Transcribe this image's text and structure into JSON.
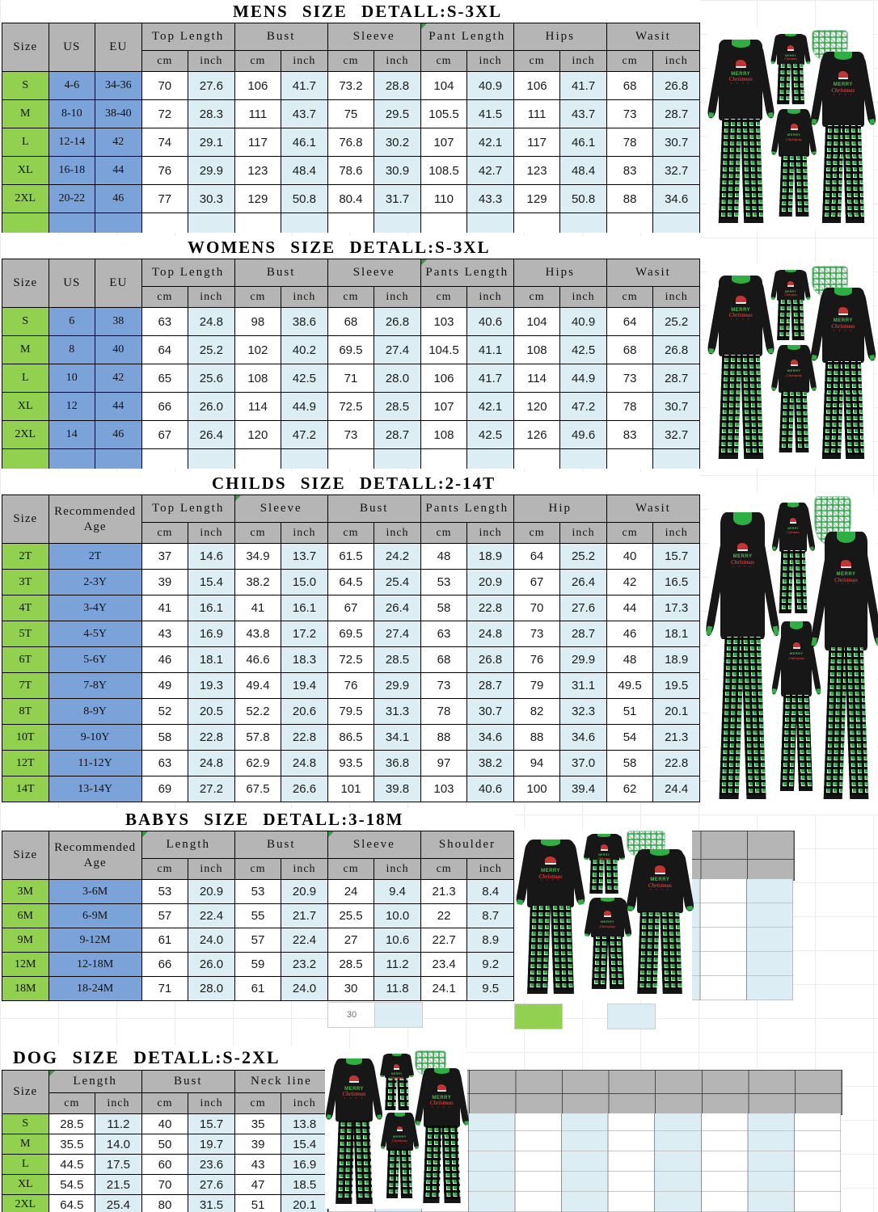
{
  "colors": {
    "header_gray": "#b5b5b5",
    "size_column_green": "#92d050",
    "id_column_blue": "#7ba3d9",
    "inch_column_blue": "#dcedf3",
    "table_border": "#000000",
    "plaid_green": "#2f9e44",
    "top_black": "#171717"
  },
  "misc": {
    "stray_cell_text": "30"
  },
  "photo": {
    "shirt_text_top": "MERRY",
    "shirt_text_script": "Christmas",
    "shirt_dots": "* * * *"
  },
  "sections": [
    {
      "id": "mens",
      "title": "MENS SIZE DETALL:S-3XL",
      "id_cols": [
        "Size",
        "US",
        "EU"
      ],
      "groups": [
        "Top Length",
        "Bust",
        "Sleeve",
        "Pant Length",
        "Hips",
        "Wasit"
      ],
      "sub_cols": [
        "cm",
        "inch"
      ],
      "note_marker_groups": [
        3
      ],
      "trailing_empty_row": true,
      "rows": [
        {
          "id": [
            "S",
            "4-6",
            "34-36"
          ],
          "vals": [
            "70",
            "27.6",
            "106",
            "41.7",
            "73.2",
            "28.8",
            "104",
            "40.9",
            "106",
            "41.7",
            "68",
            "26.8"
          ]
        },
        {
          "id": [
            "M",
            "8-10",
            "38-40"
          ],
          "vals": [
            "72",
            "28.3",
            "111",
            "43.7",
            "75",
            "29.5",
            "105.5",
            "41.5",
            "111",
            "43.7",
            "73",
            "28.7"
          ]
        },
        {
          "id": [
            "L",
            "12-14",
            "42"
          ],
          "vals": [
            "74",
            "29.1",
            "117",
            "46.1",
            "76.8",
            "30.2",
            "107",
            "42.1",
            "117",
            "46.1",
            "78",
            "30.7"
          ]
        },
        {
          "id": [
            "XL",
            "16-18",
            "44"
          ],
          "vals": [
            "76",
            "29.9",
            "123",
            "48.4",
            "78.6",
            "30.9",
            "108.5",
            "42.7",
            "123",
            "48.4",
            "83",
            "32.7"
          ]
        },
        {
          "id": [
            "2XL",
            "20-22",
            "46"
          ],
          "vals": [
            "77",
            "30.3",
            "129",
            "50.8",
            "80.4",
            "31.7",
            "110",
            "43.3",
            "129",
            "50.8",
            "88",
            "34.6"
          ]
        }
      ]
    },
    {
      "id": "womens",
      "title": "WOMENS SIZE DETALL:S-3XL",
      "id_cols": [
        "Size",
        "US",
        "EU"
      ],
      "groups": [
        "Top Length",
        "Bust",
        "Sleeve",
        "Pants Length",
        "Hips",
        "Wasit"
      ],
      "sub_cols": [
        "cm",
        "inch"
      ],
      "note_marker_groups": [
        3
      ],
      "trailing_empty_row": true,
      "rows": [
        {
          "id": [
            "S",
            "6",
            "38"
          ],
          "vals": [
            "63",
            "24.8",
            "98",
            "38.6",
            "68",
            "26.8",
            "103",
            "40.6",
            "104",
            "40.9",
            "64",
            "25.2"
          ]
        },
        {
          "id": [
            "M",
            "8",
            "40"
          ],
          "vals": [
            "64",
            "25.2",
            "102",
            "40.2",
            "69.5",
            "27.4",
            "104.5",
            "41.1",
            "108",
            "42.5",
            "68",
            "26.8"
          ]
        },
        {
          "id": [
            "L",
            "10",
            "42"
          ],
          "vals": [
            "65",
            "25.6",
            "108",
            "42.5",
            "71",
            "28.0",
            "106",
            "41.7",
            "114",
            "44.9",
            "73",
            "28.7"
          ]
        },
        {
          "id": [
            "XL",
            "12",
            "44"
          ],
          "vals": [
            "66",
            "26.0",
            "114",
            "44.9",
            "72.5",
            "28.5",
            "107",
            "42.1",
            "120",
            "47.2",
            "78",
            "30.7"
          ]
        },
        {
          "id": [
            "2XL",
            "14",
            "46"
          ],
          "vals": [
            "67",
            "26.4",
            "120",
            "47.2",
            "73",
            "28.7",
            "108",
            "42.5",
            "126",
            "49.6",
            "83",
            "32.7"
          ]
        }
      ]
    },
    {
      "id": "childs",
      "title": "CHILDS SIZE DETALL:2-14T",
      "id_cols": [
        "Size",
        "Recommended Age"
      ],
      "groups": [
        "Top Length",
        "Sleeve",
        "Bust",
        "Pants Length",
        "Hip",
        "Wasit"
      ],
      "sub_cols": [
        "cm",
        "inch"
      ],
      "note_marker_groups": [
        1
      ],
      "trailing_empty_row": false,
      "rows": [
        {
          "id": [
            "2T",
            "2T"
          ],
          "vals": [
            "37",
            "14.6",
            "34.9",
            "13.7",
            "61.5",
            "24.2",
            "48",
            "18.9",
            "64",
            "25.2",
            "40",
            "15.7"
          ]
        },
        {
          "id": [
            "3T",
            "2-3Y"
          ],
          "vals": [
            "39",
            "15.4",
            "38.2",
            "15.0",
            "64.5",
            "25.4",
            "53",
            "20.9",
            "67",
            "26.4",
            "42",
            "16.5"
          ]
        },
        {
          "id": [
            "4T",
            "3-4Y"
          ],
          "vals": [
            "41",
            "16.1",
            "41",
            "16.1",
            "67",
            "26.4",
            "58",
            "22.8",
            "70",
            "27.6",
            "44",
            "17.3"
          ]
        },
        {
          "id": [
            "5T",
            "4-5Y"
          ],
          "vals": [
            "43",
            "16.9",
            "43.8",
            "17.2",
            "69.5",
            "27.4",
            "63",
            "24.8",
            "73",
            "28.7",
            "46",
            "18.1"
          ]
        },
        {
          "id": [
            "6T",
            "5-6Y"
          ],
          "vals": [
            "46",
            "18.1",
            "46.6",
            "18.3",
            "72.5",
            "28.5",
            "68",
            "26.8",
            "76",
            "29.9",
            "48",
            "18.9"
          ]
        },
        {
          "id": [
            "7T",
            "7-8Y"
          ],
          "vals": [
            "49",
            "19.3",
            "49.4",
            "19.4",
            "76",
            "29.9",
            "73",
            "28.7",
            "79",
            "31.1",
            "49.5",
            "19.5"
          ]
        },
        {
          "id": [
            "8T",
            "8-9Y"
          ],
          "vals": [
            "52",
            "20.5",
            "52.2",
            "20.6",
            "79.5",
            "31.3",
            "78",
            "30.7",
            "82",
            "32.3",
            "51",
            "20.1"
          ]
        },
        {
          "id": [
            "10T",
            "9-10Y"
          ],
          "vals": [
            "58",
            "22.8",
            "57.8",
            "22.8",
            "86.5",
            "34.1",
            "88",
            "34.6",
            "88",
            "34.6",
            "54",
            "21.3"
          ]
        },
        {
          "id": [
            "12T",
            "11-12Y"
          ],
          "vals": [
            "63",
            "24.8",
            "62.9",
            "24.8",
            "93.5",
            "36.8",
            "97",
            "38.2",
            "94",
            "37.0",
            "58",
            "22.8"
          ]
        },
        {
          "id": [
            "14T",
            "13-14Y"
          ],
          "vals": [
            "69",
            "27.2",
            "67.5",
            "26.6",
            "101",
            "39.8",
            "103",
            "40.6",
            "100",
            "39.4",
            "62",
            "24.4"
          ]
        }
      ]
    },
    {
      "id": "babys",
      "title": "BABYS SIZE DETALL:3-18M",
      "id_cols": [
        "Size",
        "Recommended Age"
      ],
      "groups": [
        "Length",
        "Bust",
        "Sleeve",
        "Shoulder"
      ],
      "sub_cols": [
        "cm",
        "inch"
      ],
      "note_marker_groups": [
        0,
        2
      ],
      "trailing_empty_row": false,
      "rows": [
        {
          "id": [
            "3M",
            "3-6M"
          ],
          "vals": [
            "53",
            "20.9",
            "53",
            "20.9",
            "24",
            "9.4",
            "21.3",
            "8.4"
          ]
        },
        {
          "id": [
            "6M",
            "6-9M"
          ],
          "vals": [
            "57",
            "22.4",
            "55",
            "21.7",
            "25.5",
            "10.0",
            "22",
            "8.7"
          ]
        },
        {
          "id": [
            "9M",
            "9-12M"
          ],
          "vals": [
            "61",
            "24.0",
            "57",
            "22.4",
            "27",
            "10.6",
            "22.7",
            "8.9"
          ]
        },
        {
          "id": [
            "12M",
            "12-18M"
          ],
          "vals": [
            "66",
            "26.0",
            "59",
            "23.2",
            "28.5",
            "11.2",
            "23.4",
            "9.2"
          ]
        },
        {
          "id": [
            "18M",
            "18-24M"
          ],
          "vals": [
            "71",
            "28.0",
            "61",
            "24.0",
            "30",
            "11.8",
            "24.1",
            "9.5"
          ]
        }
      ]
    },
    {
      "id": "dog",
      "title": "DOG SIZE DETALL:S-2XL",
      "id_cols": [
        "Size"
      ],
      "groups": [
        "Length",
        "Bust",
        "Neck line"
      ],
      "sub_cols": [
        "cm",
        "inch"
      ],
      "note_marker_groups": [
        0
      ],
      "trailing_empty_row": false,
      "rows": [
        {
          "id": [
            "S"
          ],
          "vals": [
            "28.5",
            "11.2",
            "40",
            "15.7",
            "35",
            "13.8"
          ]
        },
        {
          "id": [
            "M"
          ],
          "vals": [
            "35.5",
            "14.0",
            "50",
            "19.7",
            "39",
            "15.4"
          ]
        },
        {
          "id": [
            "L"
          ],
          "vals": [
            "44.5",
            "17.5",
            "60",
            "23.6",
            "43",
            "16.9"
          ]
        },
        {
          "id": [
            "XL"
          ],
          "vals": [
            "54.5",
            "21.5",
            "70",
            "27.6",
            "47",
            "18.5"
          ]
        },
        {
          "id": [
            "2XL"
          ],
          "vals": [
            "64.5",
            "25.4",
            "80",
            "31.5",
            "51",
            "20.1"
          ]
        }
      ]
    }
  ]
}
